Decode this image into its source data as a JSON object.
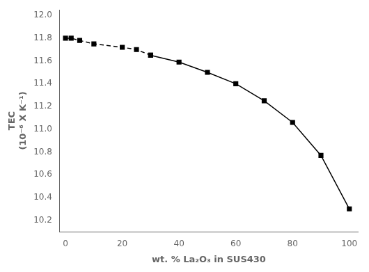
{
  "chart_data": {
    "type": "line",
    "x": [
      0,
      2,
      5,
      10,
      20,
      25,
      30,
      40,
      50,
      60,
      70,
      80,
      90,
      100
    ],
    "series": [
      {
        "values": [
          11.8,
          11.8,
          11.78,
          11.75,
          11.72,
          11.7,
          11.65,
          null,
          null,
          null,
          null,
          null,
          null,
          null
        ],
        "color": "#000000",
        "marker": "square",
        "line_style": "dashed"
      },
      {
        "values": [
          null,
          null,
          null,
          null,
          null,
          null,
          11.65,
          11.59,
          11.5,
          11.4,
          11.25,
          11.06,
          10.77,
          10.3
        ],
        "color": "#000000",
        "marker": "square",
        "line_style": "solid"
      }
    ],
    "xlabel": "wt. % La₂O₃ in SUS430",
    "ylabel": "TEC\n(10⁻⁶ X K⁻¹)",
    "xlim": [
      -2,
      103
    ],
    "ylim": [
      10.1,
      12.05
    ],
    "xticks": [
      0,
      20,
      40,
      60,
      80,
      100
    ],
    "yticks": [
      10.2,
      10.4,
      10.6,
      10.8,
      {
        "value": 11,
        "label": "11.0"
      },
      11.2,
      11.4,
      11.6,
      11.8,
      {
        "value": 12,
        "label": "12.0"
      }
    ],
    "grid": false
  }
}
